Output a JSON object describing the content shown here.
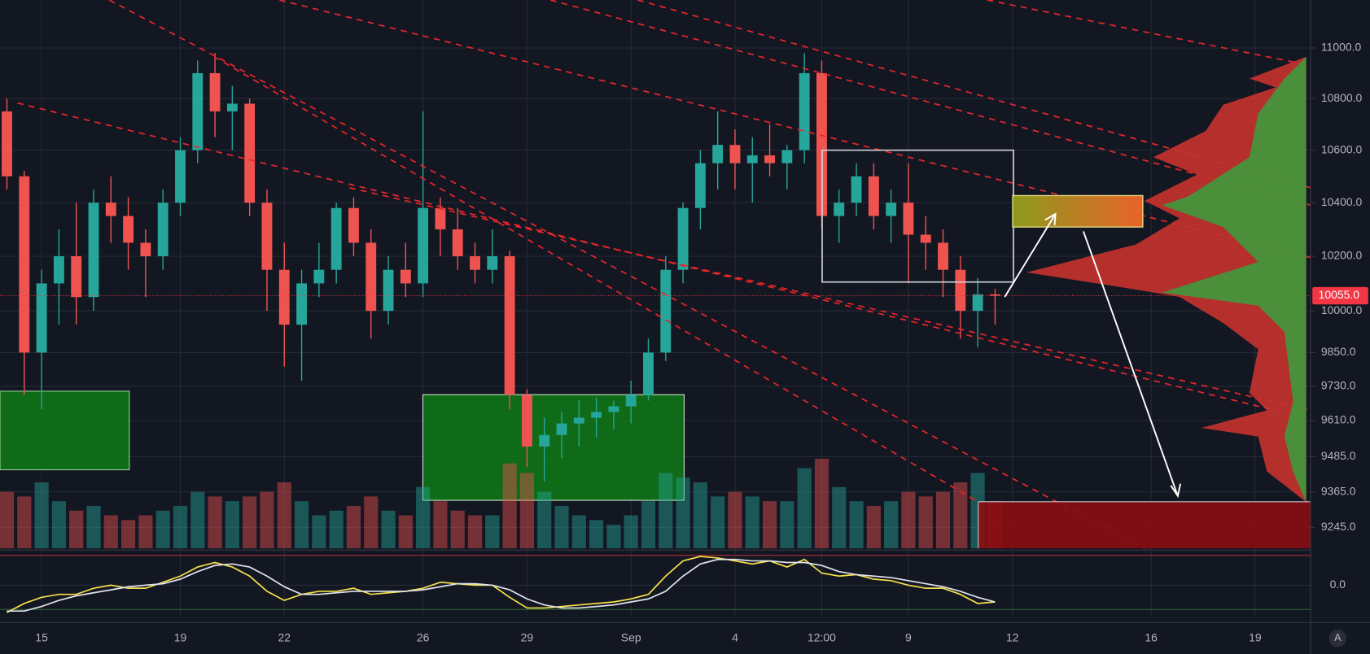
{
  "chart_data": {
    "type": "candlestick",
    "log_scale": true,
    "grid": true,
    "up_color": "#26a69a",
    "down_color": "#ef5350",
    "xlim": [
      -0.4,
      75.2
    ],
    "xticks": [
      {
        "value": 2,
        "label": "15"
      },
      {
        "value": 10,
        "label": "19"
      },
      {
        "value": 16,
        "label": "22"
      },
      {
        "value": 24,
        "label": "26"
      },
      {
        "value": 30,
        "label": "29"
      },
      {
        "value": 36,
        "label": "Sep"
      },
      {
        "value": 42,
        "label": "4"
      },
      {
        "value": 47,
        "label": "12:00"
      },
      {
        "value": 52,
        "label": "9"
      },
      {
        "value": 58,
        "label": "12"
      },
      {
        "value": 66,
        "label": "16"
      },
      {
        "value": 72,
        "label": "19"
      }
    ],
    "ylim": [
      9175,
      11193
    ],
    "yticks": [
      {
        "value": 11000,
        "label": "11000.0"
      },
      {
        "value": 10800,
        "label": "10800.0"
      },
      {
        "value": 10600,
        "label": "10600.0"
      },
      {
        "value": 10400,
        "label": "10400.0"
      },
      {
        "value": 10200,
        "label": "10200.0"
      },
      {
        "value": 10000,
        "label": "10000.0"
      },
      {
        "value": 9850,
        "label": "9850.0"
      },
      {
        "value": 9730,
        "label": "9730.0"
      },
      {
        "value": 9610,
        "label": "9610.0"
      },
      {
        "value": 9485,
        "label": "9485.0"
      },
      {
        "value": 9365,
        "label": "9365.0"
      },
      {
        "value": 9245,
        "label": "9245.0"
      }
    ],
    "last_price": {
      "value": 10055,
      "label": "10055.0",
      "color": "#f23645"
    },
    "open": [
      10750,
      10500,
      9850,
      10100,
      10200,
      10050,
      10400,
      10350,
      10250,
      10200,
      10400,
      10600,
      10900,
      10750,
      10780,
      10400,
      10150,
      9950,
      10100,
      10150,
      10380,
      10250,
      10000,
      10150,
      10100,
      10380,
      10300,
      10200,
      10150,
      10200,
      9700,
      9520,
      9560,
      9600,
      9620,
      9640,
      9660,
      9700,
      9850,
      10150,
      10380,
      10550,
      10620,
      10550,
      10580,
      10550,
      10600,
      10900,
      10350,
      10400,
      10500,
      10350,
      10400,
      10280,
      10250,
      10150,
      10000,
      10060
    ],
    "high": [
      10800,
      10520,
      10150,
      10300,
      10400,
      10450,
      10500,
      10420,
      10300,
      10450,
      10650,
      10950,
      10980,
      10850,
      10800,
      10450,
      10250,
      10150,
      10250,
      10400,
      10420,
      10300,
      10200,
      10250,
      10750,
      10420,
      10380,
      10250,
      10300,
      10220,
      9720,
      9620,
      9640,
      9680,
      9690,
      9680,
      9750,
      9900,
      10200,
      10400,
      10600,
      10750,
      10680,
      10650,
      10700,
      10620,
      10980,
      10950,
      10450,
      10550,
      10550,
      10450,
      10550,
      10350,
      10300,
      10200,
      10120,
      10080
    ],
    "low": [
      10450,
      9700,
      9650,
      9950,
      9950,
      10000,
      10250,
      10150,
      10050,
      10150,
      10350,
      10550,
      10650,
      10600,
      10350,
      10000,
      9800,
      9750,
      10050,
      10100,
      10200,
      9900,
      9950,
      10050,
      10050,
      10200,
      10150,
      10100,
      10100,
      9650,
      9450,
      9400,
      9480,
      9520,
      9550,
      9580,
      9600,
      9680,
      9820,
      10100,
      10300,
      10450,
      10450,
      10400,
      10500,
      10450,
      10550,
      10300,
      10250,
      10350,
      10300,
      10250,
      10100,
      10150,
      10050,
      9900,
      9870,
      9950
    ],
    "close": [
      10500,
      9850,
      10100,
      10200,
      10050,
      10400,
      10350,
      10250,
      10200,
      10400,
      10600,
      10900,
      10750,
      10780,
      10400,
      10150,
      9950,
      10100,
      10150,
      10380,
      10250,
      10000,
      10150,
      10100,
      10380,
      10300,
      10200,
      10150,
      10200,
      9700,
      9520,
      9560,
      9600,
      9620,
      9640,
      9660,
      9700,
      9850,
      10150,
      10380,
      10550,
      10620,
      10550,
      10580,
      10550,
      10600,
      10900,
      10350,
      10400,
      10500,
      10350,
      10400,
      10280,
      10250,
      10150,
      10000,
      10060,
      10055
    ],
    "volume": [
      60,
      55,
      70,
      50,
      40,
      45,
      35,
      30,
      35,
      40,
      45,
      60,
      55,
      50,
      55,
      60,
      70,
      50,
      35,
      40,
      45,
      55,
      40,
      35,
      65,
      50,
      40,
      35,
      35,
      90,
      80,
      60,
      45,
      35,
      30,
      25,
      35,
      50,
      80,
      75,
      70,
      55,
      60,
      55,
      50,
      50,
      85,
      95,
      65,
      50,
      45,
      50,
      60,
      55,
      60,
      70,
      80,
      50
    ],
    "indicator": {
      "ylim": [
        -1,
        1.1
      ],
      "yticks": [
        {
          "value": 0,
          "label": "0.0"
        }
      ],
      "series": [
        {
          "color": "#f5e04a",
          "values": [
            -0.9,
            -0.6,
            -0.4,
            -0.3,
            -0.3,
            -0.1,
            0,
            -0.1,
            -0.1,
            0.1,
            0.3,
            0.6,
            0.75,
            0.6,
            0.3,
            -0.2,
            -0.5,
            -0.3,
            -0.2,
            -0.2,
            -0.1,
            -0.3,
            -0.25,
            -0.2,
            -0.1,
            0.1,
            0.05,
            0,
            0,
            -0.4,
            -0.75,
            -0.75,
            -0.7,
            -0.65,
            -0.6,
            -0.55,
            -0.45,
            -0.3,
            0.3,
            0.8,
            0.95,
            0.9,
            0.8,
            0.7,
            0.8,
            0.6,
            0.85,
            0.4,
            0.3,
            0.35,
            0.2,
            0.15,
            0,
            -0.1,
            -0.1,
            -0.3,
            -0.6,
            -0.55
          ]
        },
        {
          "color": "#e0e3eb",
          "values": [
            -0.85,
            -0.85,
            -0.7,
            -0.5,
            -0.35,
            -0.25,
            -0.15,
            -0.05,
            0,
            0.05,
            0.2,
            0.45,
            0.65,
            0.7,
            0.6,
            0.3,
            -0.05,
            -0.3,
            -0.3,
            -0.25,
            -0.2,
            -0.2,
            -0.2,
            -0.2,
            -0.15,
            -0.05,
            0.05,
            0.05,
            0,
            -0.15,
            -0.45,
            -0.65,
            -0.75,
            -0.75,
            -0.7,
            -0.65,
            -0.55,
            -0.45,
            -0.2,
            0.3,
            0.7,
            0.85,
            0.85,
            0.8,
            0.8,
            0.75,
            0.75,
            0.65,
            0.45,
            0.35,
            0.3,
            0.25,
            0.15,
            0.05,
            -0.05,
            -0.2,
            -0.4,
            -0.55
          ]
        }
      ]
    },
    "auto_scale_button": "A"
  }
}
